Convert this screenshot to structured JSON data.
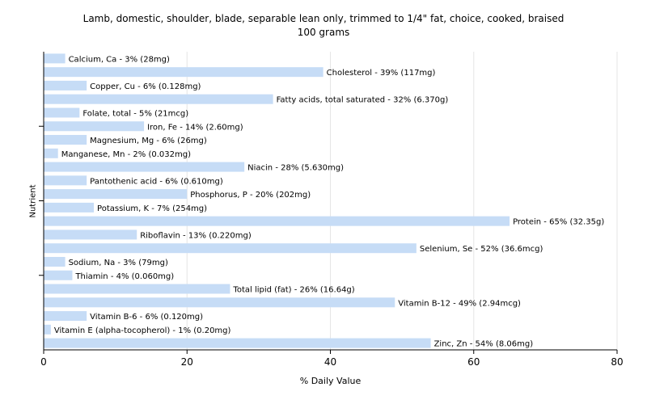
{
  "chart_data": {
    "type": "bar",
    "orientation": "horizontal",
    "title": "Lamb, domestic, shoulder, blade, separable lean only, trimmed to 1/4\" fat, choice, cooked, braised",
    "subtitle": "100 grams",
    "xlabel": "% Daily Value",
    "ylabel": "Nutrient",
    "xlim": [
      0,
      80
    ],
    "xticks": [
      "0",
      "20",
      "40",
      "60",
      "80"
    ],
    "grid": true,
    "bar_color": "#c6dcf6",
    "grid_color": "#e6e6e6",
    "categories": [
      "Calcium, Ca",
      "Cholesterol",
      "Copper, Cu",
      "Fatty acids, total saturated",
      "Folate, total",
      "Iron, Fe",
      "Magnesium, Mg",
      "Manganese, Mn",
      "Niacin",
      "Pantothenic acid",
      "Phosphorus, P",
      "Potassium, K",
      "Protein",
      "Riboflavin",
      "Selenium, Se",
      "Sodium, Na",
      "Thiamin",
      "Total lipid (fat)",
      "Vitamin B-12",
      "Vitamin B-6",
      "Vitamin E (alpha-tocopherol)",
      "Zinc, Zn"
    ],
    "values": [
      3,
      39,
      6,
      32,
      5,
      14,
      6,
      2,
      28,
      6,
      20,
      7,
      65,
      13,
      52,
      3,
      4,
      26,
      49,
      6,
      1,
      54
    ],
    "bar_labels": [
      "Calcium, Ca - 3% (28mg)",
      "Cholesterol - 39% (117mg)",
      "Copper, Cu - 6% (0.128mg)",
      "Fatty acids, total saturated - 32% (6.370g)",
      "Folate, total - 5% (21mcg)",
      "Iron, Fe - 14% (2.60mg)",
      "Magnesium, Mg - 6% (26mg)",
      "Manganese, Mn - 2% (0.032mg)",
      "Niacin - 28% (5.630mg)",
      "Pantothenic acid - 6% (0.610mg)",
      "Phosphorus, P - 20% (202mg)",
      "Potassium, K - 7% (254mg)",
      "Protein - 65% (32.35g)",
      "Riboflavin - 13% (0.220mg)",
      "Selenium, Se - 52% (36.6mcg)",
      "Sodium, Na - 3% (79mg)",
      "Thiamin - 4% (0.060mg)",
      "Total lipid (fat) - 26% (16.64g)",
      "Vitamin B-12 - 49% (2.94mcg)",
      "Vitamin B-6 - 6% (0.120mg)",
      "Vitamin E (alpha-tocopherol) - 1% (0.20mg)",
      "Zinc, Zn - 54% (8.06mg)"
    ]
  }
}
